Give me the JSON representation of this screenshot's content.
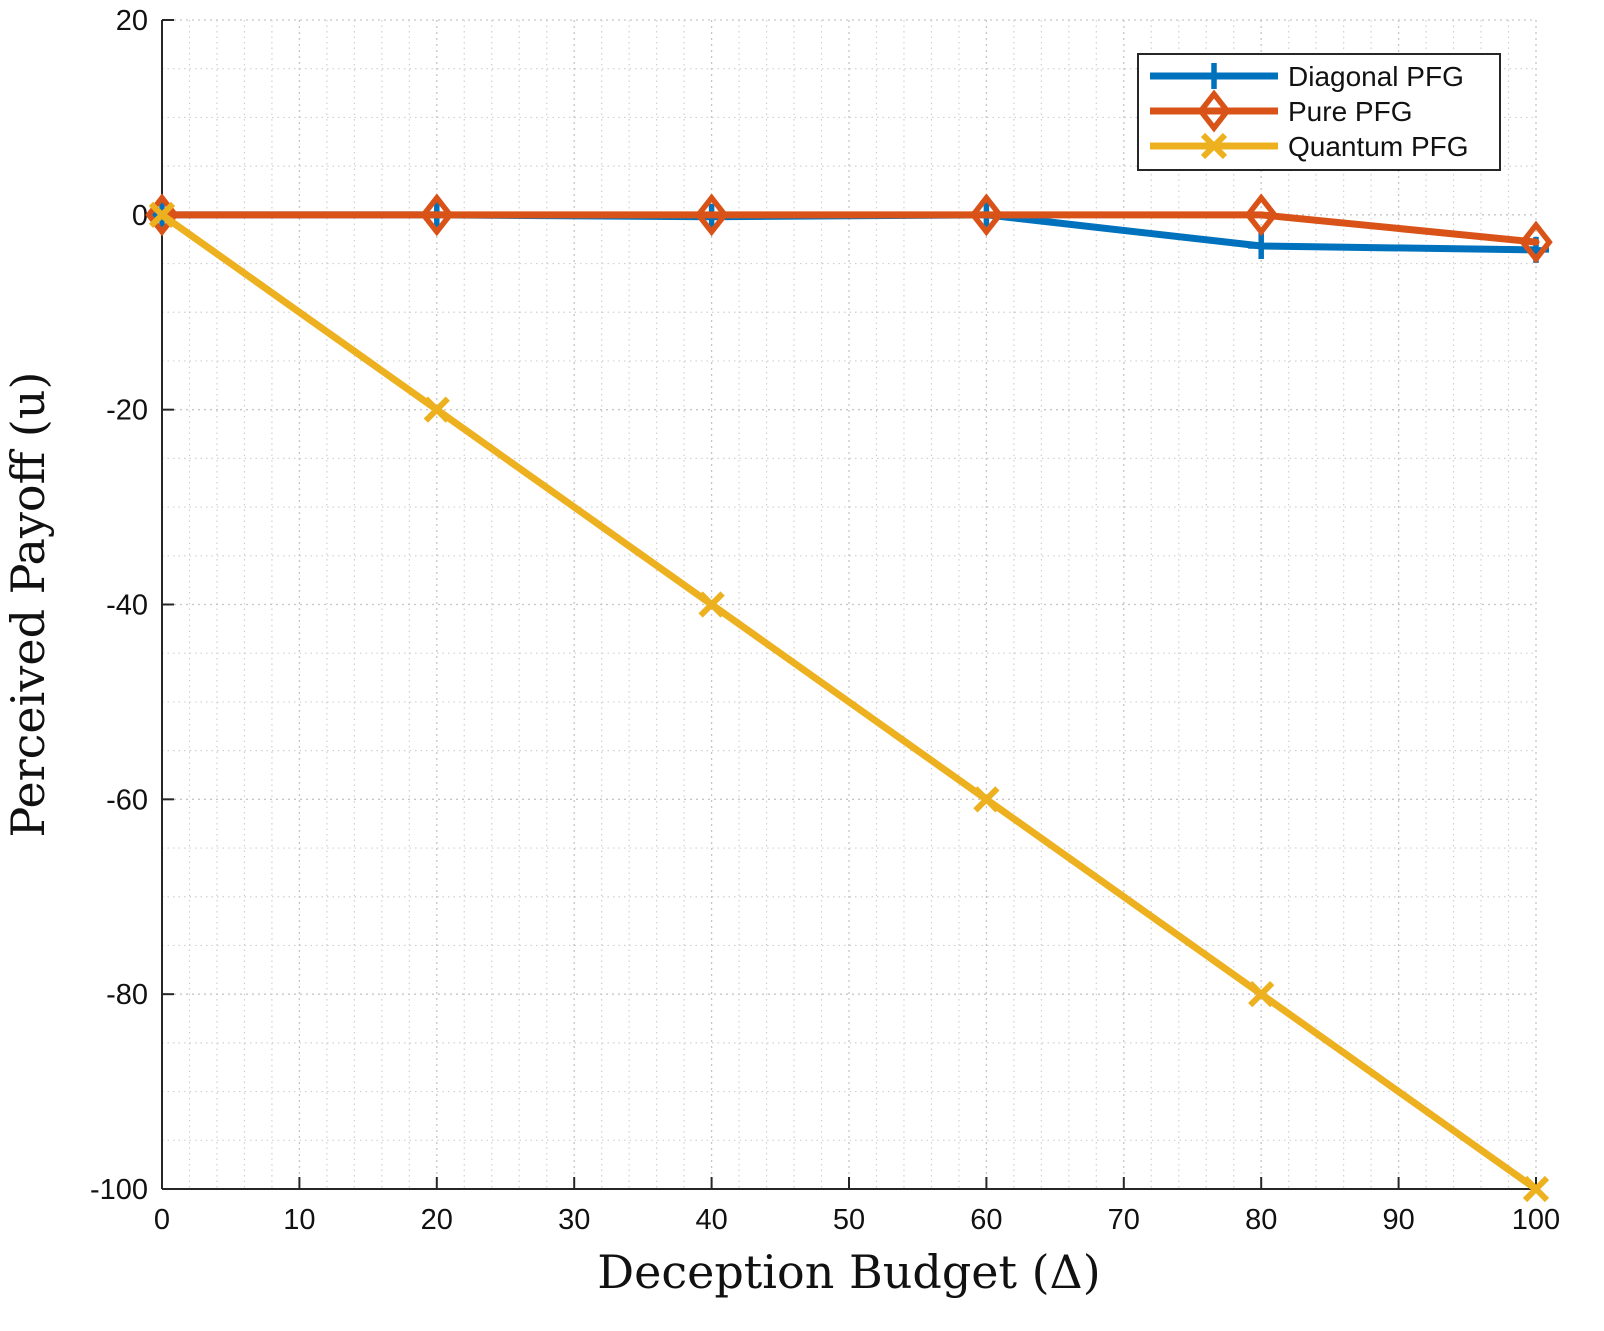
{
  "chart_data": {
    "type": "line",
    "title": "",
    "xlabel": "Deception Budget (Δ)",
    "ylabel": "Perceived Payoff (u)",
    "xlim": [
      0,
      100
    ],
    "ylim": [
      -100,
      20
    ],
    "xticks": [
      0,
      10,
      20,
      30,
      40,
      50,
      60,
      70,
      80,
      90,
      100
    ],
    "yticks": [
      -100,
      -80,
      -60,
      -40,
      -20,
      0,
      20
    ],
    "grid": true,
    "minor_grid": true,
    "legend_position": "top-right",
    "series": [
      {
        "name": "Diagonal PFG",
        "color": "#0072BD",
        "marker": "plus",
        "x": [
          0,
          20,
          40,
          60,
          80,
          100
        ],
        "y": [
          0,
          0,
          -0.2,
          0,
          -3.2,
          -3.6
        ]
      },
      {
        "name": "Pure PFG",
        "color": "#D95319",
        "marker": "diamond",
        "x": [
          0,
          20,
          40,
          60,
          80,
          100
        ],
        "y": [
          0,
          0,
          0,
          0,
          0,
          -2.8
        ]
      },
      {
        "name": "Quantum PFG",
        "color": "#EDB120",
        "marker": "x",
        "x": [
          0,
          20,
          40,
          60,
          80,
          100
        ],
        "y": [
          0,
          -20,
          -40,
          -60,
          -80,
          -100
        ]
      }
    ]
  }
}
